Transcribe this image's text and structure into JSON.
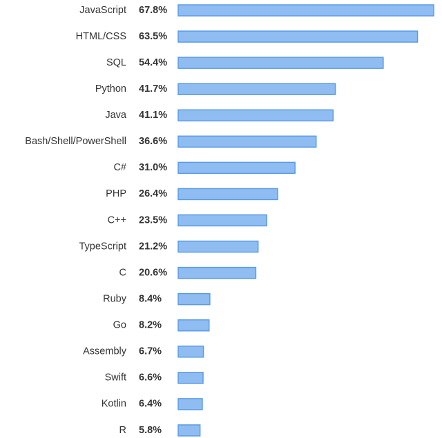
{
  "chart_data": {
    "type": "bar",
    "orientation": "horizontal",
    "categories": [
      "JavaScript",
      "HTML/CSS",
      "SQL",
      "Python",
      "Java",
      "Bash/Shell/PowerShell",
      "C#",
      "PHP",
      "C++",
      "TypeScript",
      "C",
      "Ruby",
      "Go",
      "Assembly",
      "Swift",
      "Kotlin",
      "R"
    ],
    "values": [
      67.8,
      63.5,
      54.4,
      41.7,
      41.1,
      36.6,
      31.0,
      26.4,
      23.5,
      21.2,
      20.6,
      8.4,
      8.2,
      6.7,
      6.6,
      6.4,
      5.8
    ],
    "value_labels": [
      "67.8%",
      "63.5%",
      "54.4%",
      "41.7%",
      "41.1%",
      "36.6%",
      "31.0%",
      "26.4%",
      "23.5%",
      "21.2%",
      "20.6%",
      "8.4%",
      "8.2%",
      "6.7%",
      "6.6%",
      "6.4%",
      "5.8%"
    ],
    "color": "#8fbdf2",
    "edgecolor": "#5b9be6"
  }
}
